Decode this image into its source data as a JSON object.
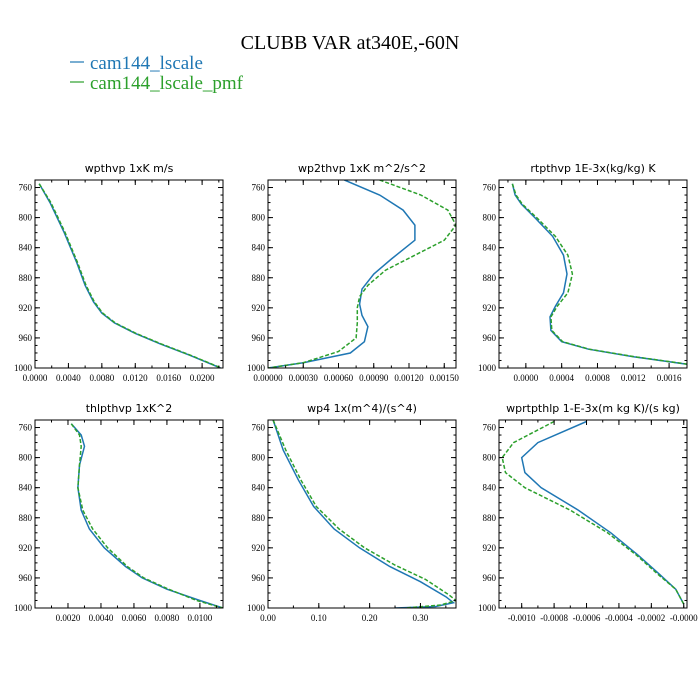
{
  "figure": {
    "title": "CLUBB VAR at340E,-60N",
    "legend": [
      {
        "name": "cam144_lscale",
        "color": "#1f77b4"
      },
      {
        "name": "cam144_lscale_pmf",
        "color": "#2ca02c"
      }
    ]
  },
  "chart_data": [
    {
      "type": "line",
      "title": "wpthvp  1xK m/s",
      "xlim": [
        0.0,
        0.0225
      ],
      "ylim": [
        1000,
        750
      ],
      "xticks": [
        0.0,
        0.004,
        0.008,
        0.012,
        0.016,
        0.02
      ],
      "xticklabels": [
        "0.0000",
        "0.0040",
        "0.0080",
        "0.0120",
        "0.0160",
        "0.0200"
      ],
      "yticks": [
        760,
        800,
        840,
        880,
        920,
        960,
        1000
      ],
      "yticklabels": [
        "760",
        "800",
        "840",
        "880",
        "920",
        "960",
        "1000"
      ],
      "series": [
        {
          "name": "cam144_lscale",
          "color": "#1f77b4",
          "dashed": false,
          "x": [
            0.0005,
            0.0018,
            0.0035,
            0.005,
            0.006,
            0.007,
            0.008,
            0.0095,
            0.012,
            0.015,
            0.0185,
            0.0222
          ],
          "y": [
            755,
            780,
            820,
            860,
            890,
            912,
            927,
            940,
            954,
            968,
            983,
            1000
          ]
        },
        {
          "name": "cam144_lscale_pmf",
          "color": "#2ca02c",
          "dashed": true,
          "x": [
            0.0005,
            0.0019,
            0.0036,
            0.0051,
            0.0061,
            0.0071,
            0.0081,
            0.0096,
            0.0121,
            0.0151,
            0.0186,
            0.0223
          ],
          "y": [
            755,
            780,
            820,
            860,
            890,
            912,
            927,
            940,
            954,
            968,
            983,
            1000
          ]
        }
      ]
    },
    {
      "type": "line",
      "title": "wp2thvp  1xK m^2/s^2",
      "xlim": [
        0.0,
        0.0016
      ],
      "ylim": [
        1000,
        750
      ],
      "xticks": [
        0.0,
        0.0003,
        0.0006,
        0.0009,
        0.0012,
        0.0015
      ],
      "xticklabels": [
        "0.00000",
        "0.00030",
        "0.00060",
        "0.00090",
        "0.00120",
        "0.00150"
      ],
      "yticks": [
        760,
        800,
        840,
        880,
        920,
        960,
        1000
      ],
      "yticklabels": [
        "760",
        "800",
        "840",
        "880",
        "920",
        "960",
        "1000"
      ],
      "series": [
        {
          "name": "cam144_lscale",
          "color": "#1f77b4",
          "dashed": false,
          "x": [
            0.00065,
            0.00095,
            0.00115,
            0.00125,
            0.00125,
            0.00105,
            0.0009,
            0.0008,
            0.00078,
            0.0008,
            0.00085,
            0.00082,
            0.0007,
            0.0003,
            0.0
          ],
          "y": [
            750,
            770,
            790,
            810,
            830,
            855,
            875,
            895,
            915,
            930,
            945,
            965,
            980,
            993,
            1000
          ]
        },
        {
          "name": "cam144_lscale_pmf",
          "color": "#2ca02c",
          "dashed": true,
          "x": [
            0.00095,
            0.0013,
            0.00153,
            0.0016,
            0.0015,
            0.00125,
            0.001,
            0.00085,
            0.00078,
            0.00076,
            0.00076,
            0.00075,
            0.0006,
            0.0003,
            0.0
          ],
          "y": [
            750,
            770,
            790,
            810,
            830,
            850,
            870,
            890,
            905,
            920,
            940,
            960,
            978,
            993,
            1000
          ]
        }
      ]
    },
    {
      "type": "line",
      "title": "rtpthvp  1E-3x(kg/kg) K",
      "xlim": [
        -0.0003,
        0.0018
      ],
      "ylim": [
        1000,
        750
      ],
      "xticks": [
        0.0,
        0.0004,
        0.0008,
        0.0012,
        0.0016
      ],
      "xticklabels": [
        "0.0000",
        "0.0004",
        "0.0008",
        "0.0012",
        "0.0016"
      ],
      "yticks": [
        760,
        800,
        840,
        880,
        920,
        960,
        1000
      ],
      "yticklabels": [
        "760",
        "800",
        "840",
        "880",
        "920",
        "960",
        "1000"
      ],
      "series": [
        {
          "name": "cam144_lscale",
          "color": "#1f77b4",
          "dashed": false,
          "x": [
            -0.00015,
            -0.00012,
            -5e-05,
            0.0001,
            0.0003,
            0.00042,
            0.00046,
            0.00042,
            0.00033,
            0.00027,
            0.00028,
            0.0004,
            0.0007,
            0.0012,
            0.0018
          ],
          "y": [
            755,
            770,
            782,
            800,
            825,
            850,
            875,
            900,
            918,
            932,
            950,
            965,
            975,
            985,
            995
          ]
        },
        {
          "name": "cam144_lscale_pmf",
          "color": "#2ca02c",
          "dashed": true,
          "x": [
            -0.00015,
            -0.00011,
            -4e-05,
            0.00012,
            0.00033,
            0.00047,
            0.00052,
            0.00047,
            0.00035,
            0.00028,
            0.00029,
            0.00041,
            0.00071,
            0.00121,
            0.00181
          ],
          "y": [
            755,
            770,
            782,
            800,
            825,
            850,
            875,
            900,
            918,
            932,
            950,
            965,
            975,
            985,
            995
          ]
        }
      ]
    },
    {
      "type": "line",
      "title": "thlpthvp  1xK^2",
      "xlim": [
        0.0,
        0.0114
      ],
      "ylim": [
        1000,
        750
      ],
      "xticks": [
        0.002,
        0.004,
        0.006,
        0.008,
        0.01
      ],
      "xticklabels": [
        "0.0020",
        "0.0040",
        "0.0060",
        "0.0080",
        "0.0100"
      ],
      "yticks": [
        760,
        800,
        840,
        880,
        920,
        960,
        1000
      ],
      "yticklabels": [
        "760",
        "800",
        "840",
        "880",
        "920",
        "960",
        "1000"
      ],
      "series": [
        {
          "name": "cam144_lscale",
          "color": "#1f77b4",
          "dashed": false,
          "x": [
            0.0022,
            0.0028,
            0.003,
            0.0027,
            0.0026,
            0.0028,
            0.0033,
            0.0042,
            0.0055,
            0.0065,
            0.008,
            0.01,
            0.0114
          ],
          "y": [
            755,
            770,
            785,
            810,
            840,
            870,
            895,
            920,
            945,
            960,
            975,
            990,
            1000
          ]
        },
        {
          "name": "cam144_lscale_pmf",
          "color": "#2ca02c",
          "dashed": true,
          "x": [
            0.0022,
            0.0027,
            0.0028,
            0.0027,
            0.0026,
            0.0029,
            0.0035,
            0.0044,
            0.0056,
            0.0066,
            0.0081,
            0.0098,
            0.0114
          ],
          "y": [
            755,
            770,
            785,
            810,
            840,
            870,
            895,
            920,
            945,
            960,
            975,
            990,
            1000
          ]
        }
      ]
    },
    {
      "type": "line",
      "title": "wp4  1x(m^4)/(s^4)",
      "xlim": [
        0.0,
        0.37
      ],
      "ylim": [
        1000,
        750
      ],
      "xticks": [
        0.0,
        0.1,
        0.2,
        0.3
      ],
      "xticklabels": [
        "0.00",
        "0.10",
        "0.20",
        "0.30"
      ],
      "yticks": [
        760,
        800,
        840,
        880,
        920,
        960,
        1000
      ],
      "yticklabels": [
        "760",
        "800",
        "840",
        "880",
        "920",
        "960",
        "1000"
      ],
      "series": [
        {
          "name": "cam144_lscale",
          "color": "#1f77b4",
          "dashed": false,
          "x": [
            0.01,
            0.03,
            0.06,
            0.09,
            0.13,
            0.18,
            0.24,
            0.3,
            0.35,
            0.365,
            0.33,
            0.25
          ],
          "y": [
            750,
            790,
            830,
            865,
            895,
            920,
            945,
            965,
            985,
            993,
            998,
            1000
          ]
        },
        {
          "name": "cam144_lscale_pmf",
          "color": "#2ca02c",
          "dashed": true,
          "x": [
            0.01,
            0.035,
            0.065,
            0.095,
            0.14,
            0.19,
            0.25,
            0.31,
            0.355,
            0.37,
            0.34,
            0.27
          ],
          "y": [
            750,
            790,
            830,
            865,
            895,
            920,
            943,
            962,
            982,
            990,
            996,
            1000
          ]
        }
      ]
    },
    {
      "type": "line",
      "title": "wprtpthlp  1-E-3x(m kg K)/(s kg)",
      "xlim": [
        -0.00114,
        2e-05
      ],
      "ylim": [
        1000,
        750
      ],
      "xticks": [
        -0.001,
        -0.0008,
        -0.0006,
        -0.0004,
        -0.0002,
        0.0
      ],
      "xticklabels": [
        "-0.0010",
        "-0.0008",
        "-0.0006",
        "-0.0004",
        "-0.0002",
        "-0.0000"
      ],
      "yticks": [
        760,
        800,
        840,
        880,
        920,
        960,
        1000
      ],
      "yticklabels": [
        "760",
        "800",
        "840",
        "880",
        "920",
        "960",
        "1000"
      ],
      "series": [
        {
          "name": "cam144_lscale",
          "color": "#1f77b4",
          "dashed": false,
          "x": [
            -0.0006,
            -0.0009,
            -0.001,
            -0.00098,
            -0.00088,
            -0.00065,
            -0.00045,
            -0.00028,
            -0.00015,
            -5e-05,
            0.0
          ],
          "y": [
            752,
            780,
            800,
            820,
            840,
            870,
            900,
            930,
            955,
            975,
            995
          ]
        },
        {
          "name": "cam144_lscale_pmf",
          "color": "#2ca02c",
          "dashed": true,
          "x": [
            -0.0008,
            -0.00105,
            -0.00112,
            -0.0011,
            -0.00098,
            -0.0007,
            -0.00047,
            -0.00029,
            -0.00016,
            -5e-05,
            0.0
          ],
          "y": [
            752,
            780,
            800,
            820,
            840,
            870,
            900,
            930,
            955,
            975,
            995
          ]
        }
      ]
    }
  ]
}
